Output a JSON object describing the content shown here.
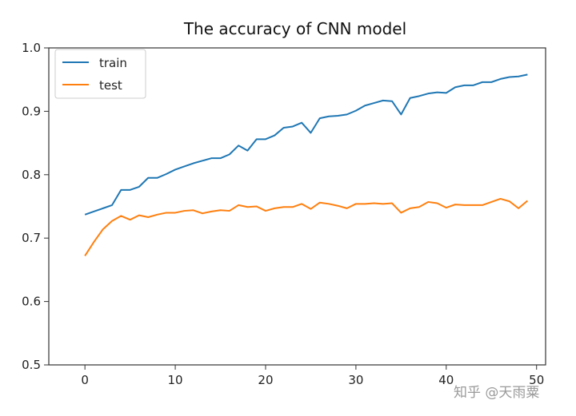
{
  "chart_data": {
    "type": "line",
    "title": "The accuracy of CNN model",
    "xlabel": "",
    "ylabel": "",
    "xlim": [
      -4,
      51
    ],
    "ylim": [
      0.5,
      1.0
    ],
    "xticks": [
      0,
      10,
      20,
      30,
      40,
      50
    ],
    "xtick_labels": [
      "0",
      "10",
      "20",
      "30",
      "40",
      "50"
    ],
    "yticks": [
      0.5,
      0.6,
      0.7,
      0.8,
      0.9,
      1.0
    ],
    "ytick_labels": [
      "0.5",
      "0.6",
      "0.7",
      "0.8",
      "0.9",
      "1.0"
    ],
    "grid": false,
    "legend_position": "top-left",
    "x": [
      0,
      1,
      2,
      3,
      4,
      5,
      6,
      7,
      8,
      9,
      10,
      11,
      12,
      13,
      14,
      15,
      16,
      17,
      18,
      19,
      20,
      21,
      22,
      23,
      24,
      25,
      26,
      27,
      28,
      29,
      30,
      31,
      32,
      33,
      34,
      35,
      36,
      37,
      38,
      39,
      40,
      41,
      42,
      43,
      44,
      45,
      46,
      47,
      48,
      49
    ],
    "series": [
      {
        "name": "train",
        "color": "#1f77b4",
        "values": [
          0.737,
          0.742,
          0.747,
          0.752,
          0.776,
          0.776,
          0.781,
          0.795,
          0.795,
          0.801,
          0.808,
          0.813,
          0.818,
          0.822,
          0.826,
          0.826,
          0.832,
          0.846,
          0.838,
          0.856,
          0.856,
          0.862,
          0.874,
          0.876,
          0.882,
          0.866,
          0.889,
          0.892,
          0.893,
          0.895,
          0.901,
          0.909,
          0.913,
          0.917,
          0.916,
          0.895,
          0.921,
          0.924,
          0.928,
          0.93,
          0.929,
          0.938,
          0.941,
          0.941,
          0.946,
          0.946,
          0.951,
          0.954,
          0.955,
          0.958
        ]
      },
      {
        "name": "test",
        "color": "#ff7f0e",
        "values": [
          0.672,
          0.694,
          0.714,
          0.727,
          0.735,
          0.729,
          0.736,
          0.733,
          0.737,
          0.74,
          0.74,
          0.743,
          0.744,
          0.739,
          0.742,
          0.744,
          0.743,
          0.752,
          0.749,
          0.75,
          0.743,
          0.747,
          0.749,
          0.749,
          0.754,
          0.746,
          0.756,
          0.754,
          0.751,
          0.747,
          0.754,
          0.754,
          0.755,
          0.754,
          0.755,
          0.74,
          0.747,
          0.749,
          0.757,
          0.755,
          0.748,
          0.753,
          0.752,
          0.752,
          0.752,
          0.757,
          0.762,
          0.758,
          0.747,
          0.759
        ]
      }
    ]
  },
  "watermark": {
    "text": "知乎 @天雨粟"
  }
}
